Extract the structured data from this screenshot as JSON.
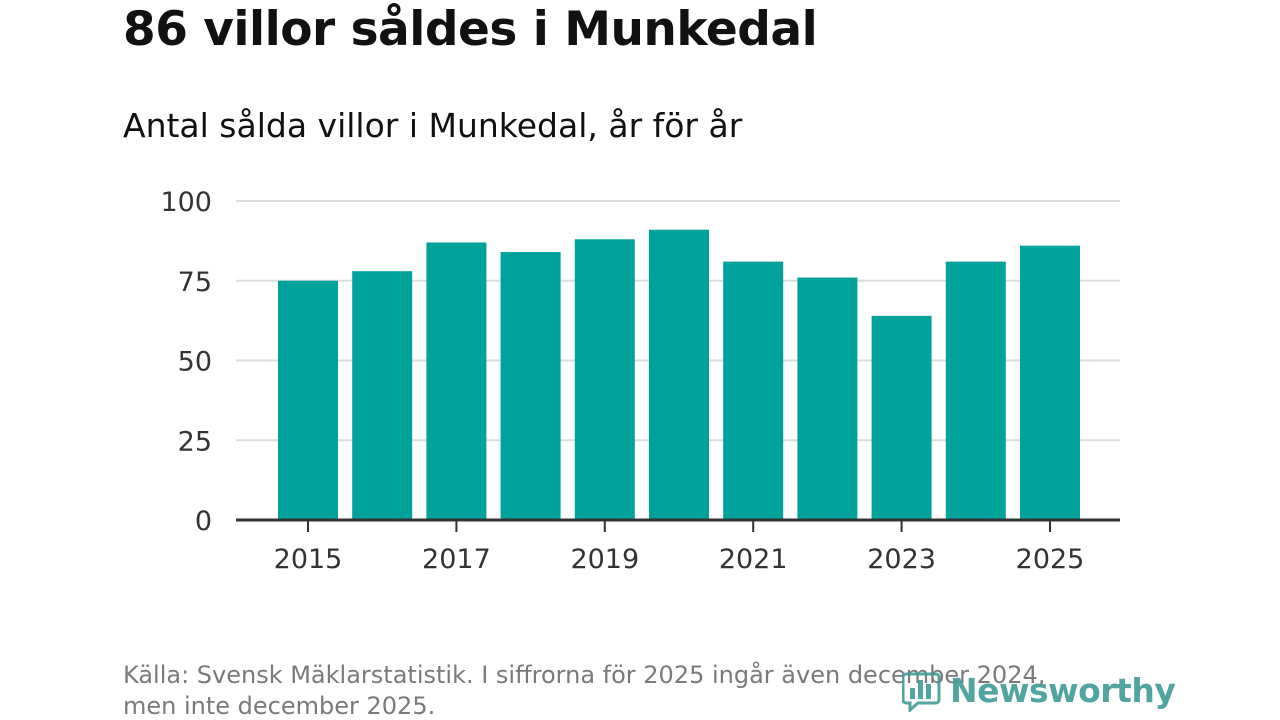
{
  "title": "86 villor såldes i Munkedal",
  "subtitle": "Antal sålda villor i Munkedal, år för år",
  "source": {
    "line1": "Källa: Svensk Mäklarstatistik. I siffrorna för 2025 ingår även december 2024,",
    "line2": "men inte december 2025."
  },
  "logo": {
    "text": "Newsworthy",
    "icon": "bar-chart-logo-icon"
  },
  "colors": {
    "bar": "#00a39b",
    "grid": "#dddddd",
    "axis": "#333333",
    "logo": "#3f9c96"
  },
  "chart_data": {
    "type": "bar",
    "categories": [
      "2015",
      "2016",
      "2017",
      "2018",
      "2019",
      "2020",
      "2021",
      "2022",
      "2023",
      "2024",
      "2025"
    ],
    "values": [
      75,
      78,
      87,
      84,
      88,
      91,
      81,
      76,
      64,
      81,
      86
    ],
    "x_tick_labels": [
      "2015",
      "2017",
      "2019",
      "2021",
      "2023",
      "2025"
    ],
    "y_ticks": [
      0,
      25,
      50,
      75,
      100
    ],
    "ylim": [
      0,
      100
    ],
    "title": "86 villor såldes i Munkedal",
    "subtitle": "Antal sålda villor i Munkedal, år för år",
    "xlabel": "",
    "ylabel": "",
    "grid": true
  }
}
